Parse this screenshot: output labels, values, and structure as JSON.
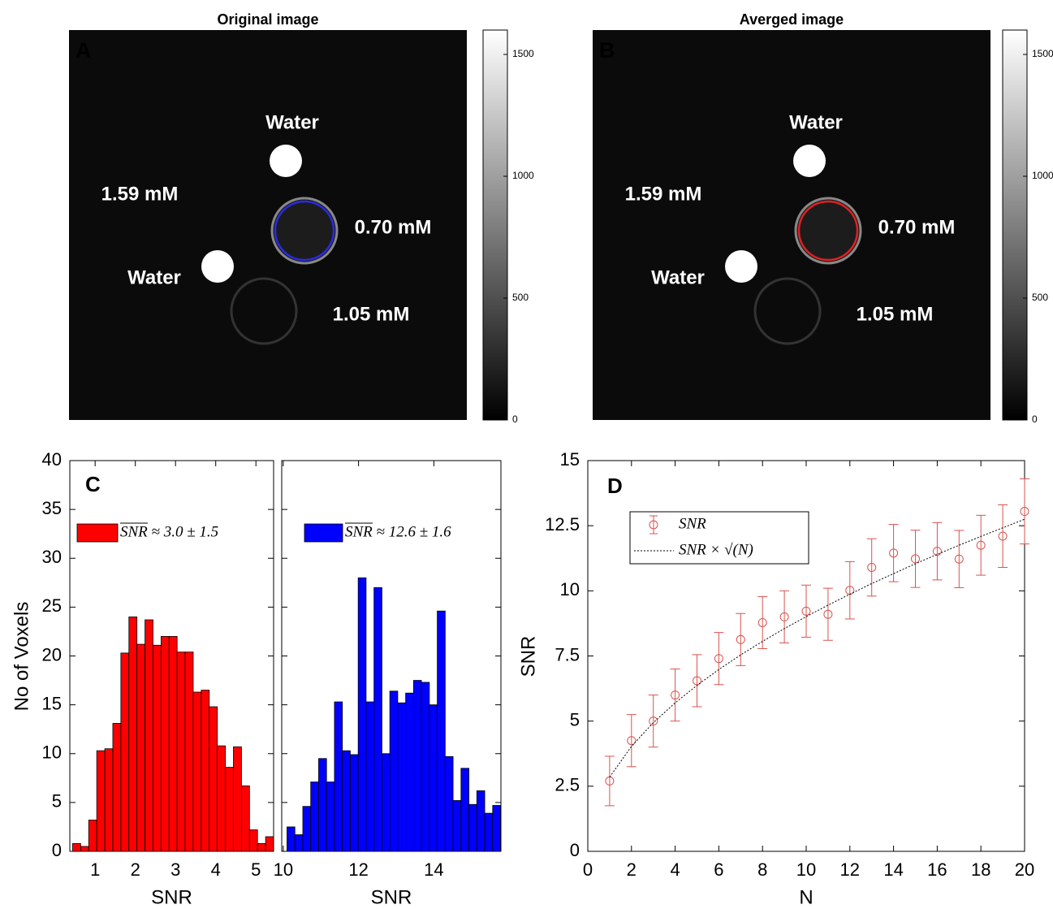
{
  "chart_data": [
    {
      "type": "image",
      "title": "Original image",
      "panel": "A",
      "annotations": [
        "Water",
        "1.59 mM",
        "0.70 mM",
        "Water",
        "1.05 mM"
      ],
      "roi_color": "#2a2ae0",
      "clim": [
        0,
        1600
      ],
      "cticks": [
        0,
        500,
        1000,
        1500
      ]
    },
    {
      "type": "image",
      "title": "Averged image",
      "panel": "B",
      "annotations": [
        "Water",
        "1.59 mM",
        "0.70 mM",
        "Water",
        "1.05 mM"
      ],
      "roi_color": "#e02020",
      "clim": [
        0,
        1600
      ],
      "cticks": [
        0,
        500,
        1000,
        1500
      ]
    },
    {
      "type": "histogram",
      "panel": "C",
      "ylabel": "No of Voxels",
      "xlabel": "SNR",
      "bins": [
        0.44,
        0.64,
        0.84,
        1.04,
        1.24,
        1.44,
        1.64,
        1.84,
        2.04,
        2.24,
        2.44,
        2.64,
        2.84,
        3.04,
        3.24,
        3.44,
        3.64,
        3.84,
        4.04,
        4.24,
        4.44,
        4.64,
        4.84,
        5.04,
        5.24,
        5.44
      ],
      "series": [
        {
          "name": "SNR ≈ 3.0 ± 1.5",
          "color": "#ff0000",
          "values": [
            0.8,
            0.5,
            3.2,
            10.3,
            10.5,
            13.1,
            20.3,
            24,
            21.2,
            23.7,
            21.1,
            22,
            22,
            20.4,
            20.4,
            16.3,
            16.5,
            14.8,
            10.8,
            8.6,
            10.7,
            6.7,
            2.2,
            0.8,
            1.5
          ]
        }
      ],
      "xlim": [
        0.37,
        5.44
      ],
      "xticks": [
        1,
        2,
        3,
        4,
        5
      ],
      "ylim": [
        0,
        40
      ],
      "yticks": [
        0,
        5,
        10,
        15,
        20,
        25,
        30,
        35,
        40
      ]
    },
    {
      "type": "histogram",
      "xlabel": "SNR",
      "bins": [
        10.1,
        10.31,
        10.52,
        10.73,
        10.94,
        11.15,
        11.36,
        11.57,
        11.78,
        11.99,
        12.2,
        12.41,
        12.62,
        12.83,
        13.04,
        13.25,
        13.46,
        13.67,
        13.88,
        14.09,
        14.3,
        14.51,
        14.72,
        14.93,
        15.14,
        15.35,
        15.56,
        15.77
      ],
      "series": [
        {
          "name": "SNR ≈ 12.6 ± 1.6",
          "color": "#0000ff",
          "values": [
            2.5,
            1.7,
            4.6,
            7.1,
            9.5,
            7.1,
            15.3,
            10.3,
            9.9,
            28,
            15.3,
            27,
            10,
            16.4,
            15.2,
            16.2,
            17.5,
            17.3,
            15,
            24.6,
            9.7,
            5.2,
            8.5,
            4.8,
            6.2,
            3.9,
            4.7
          ]
        }
      ],
      "xlim": [
        9.96,
        15.78
      ],
      "xticks": [
        10,
        12,
        14
      ],
      "ylim": [
        0,
        40
      ],
      "yticks": [
        0,
        5,
        10,
        15,
        20,
        25,
        30,
        35,
        40
      ],
      "ytick_labels": false
    },
    {
      "type": "errorbar",
      "panel": "D",
      "ylabel": "SNR",
      "xlabel": "N",
      "x": [
        1,
        2,
        3,
        4,
        5,
        6,
        7,
        8,
        9,
        10,
        11,
        12,
        13,
        14,
        15,
        16,
        17,
        18,
        19,
        20
      ],
      "series": [
        {
          "name": "SNR",
          "color": "#d9534f",
          "values": [
            2.7,
            4.25,
            5,
            6,
            6.55,
            7.4,
            8.13,
            8.78,
            9,
            9.22,
            9.1,
            10.02,
            10.9,
            11.45,
            11.23,
            11.52,
            11.22,
            11.75,
            12.1,
            13.05
          ],
          "errors": [
            0.95,
            1,
            1,
            1,
            1,
            1,
            1,
            1,
            1,
            1,
            1,
            1.1,
            1.1,
            1.1,
            1.1,
            1.1,
            1.1,
            1.15,
            1.2,
            1.25
          ]
        },
        {
          "name": "SNR × √(N)",
          "color": "#000000",
          "values": [
            2.85,
            4.03,
            4.94,
            5.7,
            6.37,
            6.98,
            7.54,
            8.06,
            8.55,
            9.01,
            9.45,
            9.87,
            10.28,
            10.66,
            11.04,
            11.4,
            11.75,
            12.09,
            12.42,
            12.75
          ]
        }
      ],
      "xlim": [
        0,
        20
      ],
      "xticks": [
        0,
        2,
        4,
        6,
        8,
        10,
        12,
        14,
        16,
        18,
        20
      ],
      "ylim": [
        0,
        15
      ],
      "yticks": [
        0,
        2.5,
        5,
        7.5,
        10,
        12.5,
        15
      ]
    }
  ]
}
